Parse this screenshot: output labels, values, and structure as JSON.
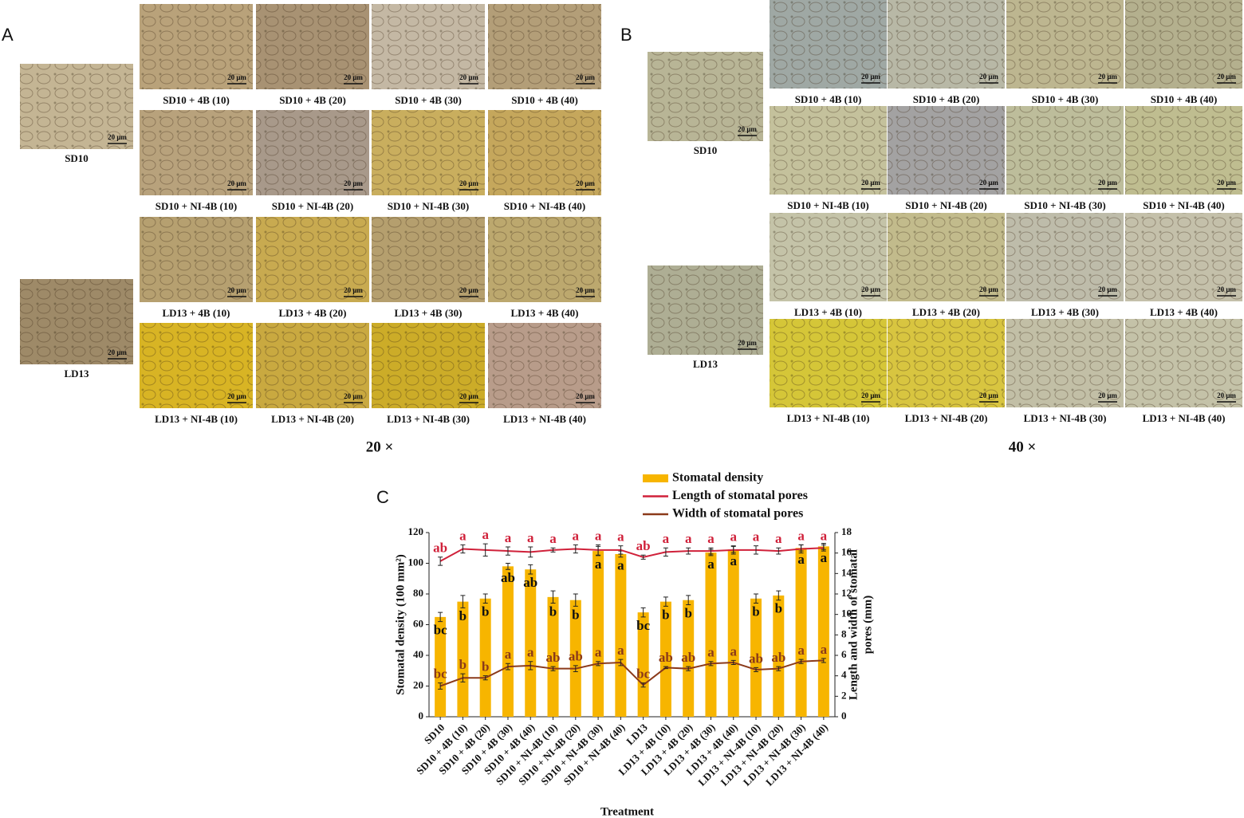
{
  "panels": [
    {
      "label": "A",
      "magnification": "20 ×",
      "controls": [
        {
          "caption": "SD10",
          "scale": "20 μm"
        },
        {
          "caption": "LD13",
          "scale": "20 μm"
        }
      ],
      "grid": [
        {
          "caption": "SD10 + 4B (10)",
          "scale": "20 μm"
        },
        {
          "caption": "SD10 + 4B (20)",
          "scale": "20 μm"
        },
        {
          "caption": "SD10 + 4B (30)",
          "scale": "20 μm"
        },
        {
          "caption": "SD10 + 4B (40)",
          "scale": "20 μm"
        },
        {
          "caption": "SD10 + NI-4B (10)",
          "scale": "20 μm"
        },
        {
          "caption": "SD10 + NI-4B (20)",
          "scale": "20 μm"
        },
        {
          "caption": "SD10 + NI-4B (30)",
          "scale": "20 μm"
        },
        {
          "caption": "SD10 + NI-4B (40)",
          "scale": "20 μm"
        },
        {
          "caption": "LD13 + 4B (10)",
          "scale": "20 μm"
        },
        {
          "caption": "LD13 + 4B (20)",
          "scale": "20 μm"
        },
        {
          "caption": "LD13 + 4B (30)",
          "scale": "20 μm"
        },
        {
          "caption": "LD13 + 4B (40)",
          "scale": "20 μm"
        },
        {
          "caption": "LD13 + NI-4B (10)",
          "scale": "20 μm"
        },
        {
          "caption": "LD13 + NI-4B (20)",
          "scale": "20 μm"
        },
        {
          "caption": "LD13 + NI-4B (30)",
          "scale": "20 μm"
        },
        {
          "caption": "LD13 + NI-4B (40)",
          "scale": "20 μm"
        }
      ]
    },
    {
      "label": "B",
      "magnification": "40 ×",
      "controls": [
        {
          "caption": "SD10",
          "scale": "20 μm"
        },
        {
          "caption": "LD13",
          "scale": "20 μm"
        }
      ],
      "grid": [
        {
          "caption": "SD10 + 4B (10)",
          "scale": "20 μm"
        },
        {
          "caption": "SD10 + 4B (20)",
          "scale": "20 μm"
        },
        {
          "caption": "SD10 + 4B (30)",
          "scale": "20 μm"
        },
        {
          "caption": "SD10 + 4B (40)",
          "scale": "20 μm"
        },
        {
          "caption": "SD10 + NI-4B (10)",
          "scale": "20 μm"
        },
        {
          "caption": "SD10 + NI-4B (20)",
          "scale": "20 μm"
        },
        {
          "caption": "SD10 + NI-4B (30)",
          "scale": "20 μm"
        },
        {
          "caption": "SD10 + NI-4B (40)",
          "scale": "20 μm"
        },
        {
          "caption": "LD13 + 4B (10)",
          "scale": "20 μm"
        },
        {
          "caption": "LD13 + 4B (20)",
          "scale": "20 μm"
        },
        {
          "caption": "LD13 + 4B (30)",
          "scale": "20 μm"
        },
        {
          "caption": "LD13 + 4B (40)",
          "scale": "20 μm"
        },
        {
          "caption": "LD13 + NI-4B (10)",
          "scale": "20 μm"
        },
        {
          "caption": "LD13 + NI-4B (20)",
          "scale": "20 μm"
        },
        {
          "caption": "LD13 + NI-4B (30)",
          "scale": "20 μm"
        },
        {
          "caption": "LD13 + NI-4B (40)",
          "scale": "20 μm"
        }
      ]
    }
  ],
  "chart_data": {
    "type": "bar",
    "panel_label": "C",
    "xlabel": "Treatment",
    "ylabel": "Stomatal density (100 mm²)",
    "y2label": [
      "Length and width of stomatal",
      "pores (mm)"
    ],
    "categories": [
      "SD10",
      "SD10 + 4B (10)",
      "SD10 + 4B (20)",
      "SD10 + 4B (30)",
      "SD10 + 4B (40)",
      "SD10 + NI-4B (10)",
      "SD10 + NI-4B (20)",
      "SD10 + NI-4B (30)",
      "SD10 + NI-4B (40)",
      "LD13",
      "LD13 + 4B (10)",
      "LD13 + 4B (20)",
      "LD13 + 4B (30)",
      "LD13 + 4B (40)",
      "LD13 + NI-4B (10)",
      "LD13 + NI-4B (20)",
      "LD13 + NI-4B (30)",
      "LD13 + NI-4B (40)"
    ],
    "ylim": [
      0,
      120
    ],
    "yticks": [
      0,
      20,
      40,
      60,
      80,
      100,
      120
    ],
    "y2lim": [
      0,
      18
    ],
    "y2ticks": [
      0,
      2,
      4,
      6,
      8,
      10,
      12,
      14,
      16,
      18
    ],
    "series": [
      {
        "name": "Stomatal density",
        "type": "bar",
        "color": "#f7b500",
        "values": [
          65,
          75,
          77,
          98,
          96,
          78,
          76,
          108,
          106,
          68,
          75,
          76,
          107,
          109,
          77,
          79,
          110,
          111
        ],
        "errors": [
          3,
          4,
          3,
          2,
          3,
          4,
          4,
          3,
          2,
          3,
          3,
          3,
          2,
          2,
          3,
          3,
          2,
          2
        ],
        "letters": [
          "bc",
          "b",
          "b",
          "ab",
          "ab",
          "b",
          "b",
          "a",
          "a",
          "bc",
          "b",
          "b",
          "a",
          "a",
          "b",
          "b",
          "a",
          "a"
        ]
      },
      {
        "name": "Length of stomatal pores",
        "type": "line",
        "axis": "y2",
        "color": "#d0213a",
        "values": [
          15.2,
          16.4,
          16.3,
          16.2,
          16.1,
          16.3,
          16.4,
          16.3,
          16.3,
          15.6,
          16.1,
          16.2,
          16.2,
          16.3,
          16.3,
          16.2,
          16.4,
          16.5
        ],
        "errors": [
          0.4,
          0.4,
          0.6,
          0.4,
          0.5,
          0.2,
          0.4,
          0.5,
          0.4,
          0.2,
          0.4,
          0.3,
          0.3,
          0.4,
          0.4,
          0.3,
          0.4,
          0.3
        ],
        "letters": [
          "ab",
          "a",
          "a",
          "a",
          "a",
          "a",
          "a",
          "a",
          "a",
          "ab",
          "a",
          "a",
          "a",
          "a",
          "a",
          "a",
          "a",
          "a"
        ]
      },
      {
        "name": "Width of stomatal pores",
        "type": "line",
        "axis": "y2",
        "color": "#8b3a1a",
        "values": [
          3.0,
          3.8,
          3.8,
          4.9,
          5.0,
          4.7,
          4.7,
          5.2,
          5.3,
          3.1,
          4.8,
          4.7,
          5.2,
          5.3,
          4.6,
          4.7,
          5.4,
          5.5
        ],
        "errors": [
          0.3,
          0.4,
          0.2,
          0.3,
          0.4,
          0.2,
          0.3,
          0.2,
          0.3,
          0.2,
          0.1,
          0.2,
          0.2,
          0.2,
          0.2,
          0.2,
          0.2,
          0.2
        ],
        "letters": [
          "bc",
          "b",
          "b",
          "a",
          "a",
          "ab",
          "ab",
          "a",
          "a",
          "bc",
          "ab",
          "ab",
          "a",
          "a",
          "ab",
          "ab",
          "a",
          "a"
        ]
      }
    ]
  }
}
